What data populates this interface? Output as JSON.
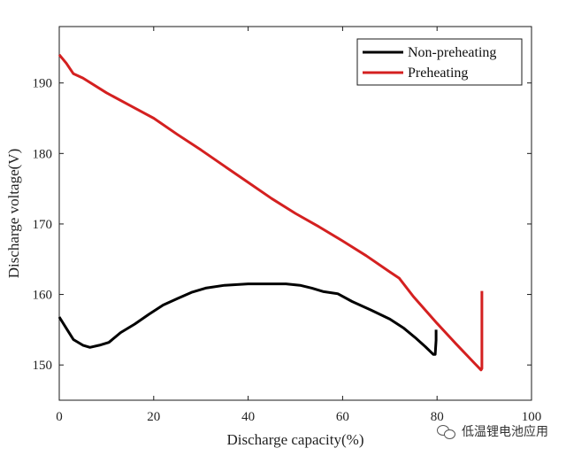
{
  "chart_data": {
    "type": "line",
    "xlabel": "Discharge capacity(%)",
    "ylabel": "Discharge voltage(V)",
    "xlim": [
      0,
      100
    ],
    "ylim": [
      145,
      198
    ],
    "xticks": [
      0,
      20,
      40,
      60,
      80,
      100
    ],
    "yticks": [
      150,
      160,
      170,
      180,
      190
    ],
    "legend_position": "top-right",
    "series": [
      {
        "name": "Non-preheating",
        "color": "#000000",
        "points": [
          [
            0,
            156.8
          ],
          [
            1.5,
            155.2
          ],
          [
            3,
            153.6
          ],
          [
            5,
            152.8
          ],
          [
            6.5,
            152.5
          ],
          [
            8.5,
            152.8
          ],
          [
            10.5,
            153.2
          ],
          [
            13,
            154.6
          ],
          [
            16,
            155.8
          ],
          [
            19,
            157.2
          ],
          [
            22,
            158.5
          ],
          [
            25,
            159.4
          ],
          [
            28,
            160.3
          ],
          [
            31,
            160.9
          ],
          [
            35,
            161.3
          ],
          [
            40,
            161.5
          ],
          [
            45,
            161.5
          ],
          [
            48,
            161.5
          ],
          [
            51,
            161.3
          ],
          [
            53.5,
            160.9
          ],
          [
            56,
            160.4
          ],
          [
            59,
            160.1
          ],
          [
            62,
            159.0
          ],
          [
            66,
            157.8
          ],
          [
            70,
            156.5
          ],
          [
            73,
            155.2
          ],
          [
            75.5,
            153.8
          ],
          [
            77.5,
            152.6
          ],
          [
            79.2,
            151.5
          ],
          [
            79.6,
            151.5
          ],
          [
            79.8,
            153.5
          ],
          [
            79.8,
            155.0
          ]
        ]
      },
      {
        "name": "Preheating",
        "color": "#d42020",
        "points": [
          [
            0,
            194.0
          ],
          [
            1.5,
            192.8
          ],
          [
            3,
            191.3
          ],
          [
            5,
            190.7
          ],
          [
            10,
            188.6
          ],
          [
            15,
            186.8
          ],
          [
            20,
            185.0
          ],
          [
            25,
            182.7
          ],
          [
            30,
            180.5
          ],
          [
            35,
            178.2
          ],
          [
            40,
            175.9
          ],
          [
            45,
            173.6
          ],
          [
            50,
            171.5
          ],
          [
            55,
            169.6
          ],
          [
            60,
            167.6
          ],
          [
            65,
            165.5
          ],
          [
            70,
            163.2
          ],
          [
            72,
            162.3
          ],
          [
            75,
            159.7
          ],
          [
            80,
            155.9
          ],
          [
            84,
            153.0
          ],
          [
            88,
            150.2
          ],
          [
            89.3,
            149.3
          ],
          [
            89.5,
            149.5
          ],
          [
            89.5,
            153.5
          ],
          [
            89.5,
            160.5
          ]
        ]
      }
    ]
  },
  "watermark": {
    "text": "低温锂电池应用",
    "icon": "wechat-icon"
  }
}
